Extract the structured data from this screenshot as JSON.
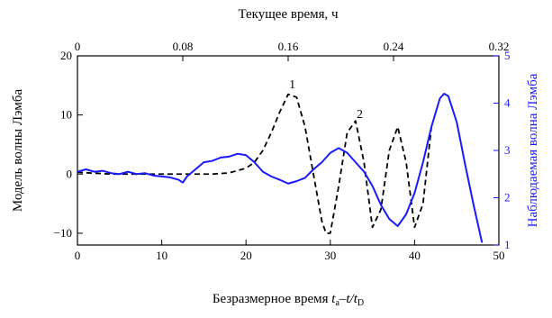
{
  "chart_data": {
    "type": "line",
    "top_axis": {
      "label": "Текущее время, ч",
      "ticks": [
        "0",
        "0.08",
        "0.16",
        "0.24",
        "0.32"
      ],
      "range": [
        0,
        0.32
      ]
    },
    "xlabel": {
      "prefix": "Безразмерное время ",
      "t": "t",
      "sub_a": "а",
      "dash": "–",
      "t2": "t/t",
      "sub_d": "D"
    },
    "xlim": [
      0,
      50
    ],
    "x_ticks": [
      "0",
      "10",
      "20",
      "30",
      "40",
      "50"
    ],
    "left_axis": {
      "label": "Модель волны Лэмба",
      "lim": [
        -12,
        20
      ],
      "ticks": [
        "-10",
        "0",
        "10",
        "20"
      ]
    },
    "right_axis": {
      "label": "Наблюдаемая волна Лэмба",
      "lim": [
        1,
        5
      ],
      "ticks": [
        "1",
        "2",
        "3",
        "4",
        "5"
      ],
      "color": "#1a1aff"
    },
    "annotations": [
      {
        "text": "1",
        "x": 25.5,
        "y": 14.5
      },
      {
        "text": "2",
        "x": 33.5,
        "y": 9.5
      }
    ],
    "series": [
      {
        "style": "dashed",
        "color": "#000000",
        "axis": "left",
        "x": [
          0,
          4,
          8,
          12,
          14,
          16,
          18,
          20,
          21,
          22,
          23,
          24,
          25,
          26,
          27,
          28,
          29,
          29.5,
          30,
          31,
          32,
          33,
          34,
          35,
          36,
          37,
          38,
          39,
          40,
          41,
          42
        ],
        "y": [
          0.3,
          0,
          0,
          0,
          0,
          0,
          0.2,
          1,
          2,
          4,
          7,
          10.5,
          13.5,
          13,
          8,
          0,
          -8,
          -10,
          -10,
          -2,
          7,
          9,
          2,
          -9,
          -6,
          4,
          8,
          2,
          -9,
          -5,
          8
        ]
      },
      {
        "style": "solid",
        "color": "#1a1aff",
        "axis": "right",
        "x": [
          0,
          1,
          2,
          3,
          4,
          5,
          6,
          7,
          8,
          9,
          10,
          11,
          12,
          12.5,
          13,
          14,
          15,
          16,
          17,
          18,
          19,
          20,
          21,
          22,
          23,
          24,
          25,
          26,
          27,
          28,
          29,
          30,
          31,
          32,
          33,
          34,
          35,
          36,
          37,
          38,
          39,
          40,
          41,
          42,
          43,
          43.5,
          44,
          45,
          46,
          47,
          48
        ],
        "y": [
          2.55,
          2.6,
          2.55,
          2.57,
          2.52,
          2.5,
          2.55,
          2.5,
          2.52,
          2.47,
          2.45,
          2.43,
          2.38,
          2.32,
          2.45,
          2.6,
          2.75,
          2.78,
          2.85,
          2.87,
          2.93,
          2.9,
          2.75,
          2.55,
          2.45,
          2.38,
          2.3,
          2.35,
          2.42,
          2.6,
          2.75,
          2.95,
          3.05,
          2.95,
          2.75,
          2.55,
          2.25,
          1.85,
          1.55,
          1.4,
          1.65,
          2.1,
          2.75,
          3.5,
          4.1,
          4.2,
          4.15,
          3.6,
          2.7,
          1.85,
          1.05
        ]
      }
    ]
  }
}
